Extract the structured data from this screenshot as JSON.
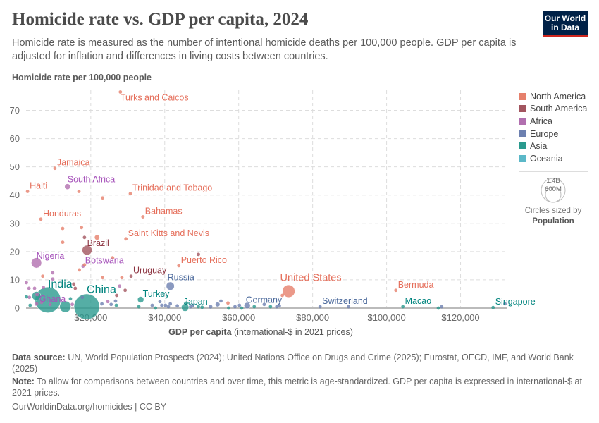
{
  "header": {
    "title": "Homicide rate vs. GDP per capita, 2024",
    "subtitle": "Homicide rate is measured as the number of intentional homicide deaths per 100,000 people. GDP per capita is adjusted for inflation and differences in living costs between countries.",
    "logo": "Our World in Data"
  },
  "legend": {
    "items": [
      {
        "label": "North America",
        "color": "#E6806C"
      },
      {
        "label": "South America",
        "color": "#A2555F"
      },
      {
        "label": "Africa",
        "color": "#B16FAF"
      },
      {
        "label": "Europe",
        "color": "#6D80B0"
      },
      {
        "label": "Asia",
        "color": "#2A9A8E"
      },
      {
        "label": "Oceania",
        "color": "#5BB8C8"
      }
    ],
    "size_big": "1.4B",
    "size_small": "600M",
    "size_caption": "Circles sized by",
    "size_variable": "Population"
  },
  "footer": {
    "source_label": "Data source:",
    "source": "UN, World Population Prospects (2024); United Nations Office on Drugs and Crime (2025); Eurostat, OECD, IMF, and World Bank (2025)",
    "note_label": "Note:",
    "note": "To allow for comparisons between countries and over time, this metric is age-standardized. GDP per capita is expressed in international-$ at 2021 prices.",
    "credit": "OurWorldinData.org/homicides | CC BY"
  },
  "chart_data": {
    "type": "scatter",
    "title": "Homicide rate vs. GDP per capita, 2024",
    "ylabel": "Homicide rate per 100,000 people",
    "xlabel_bold": "GDP per capita",
    "xlabel_rest": "(international-$ in 2021 prices)",
    "xlim": [
      2500,
      134000
    ],
    "ylim": [
      0,
      75
    ],
    "xticks": [
      {
        "v": 20000,
        "label": "$20,000"
      },
      {
        "v": 40000,
        "label": "$40,000"
      },
      {
        "v": 60000,
        "label": "$60,000"
      },
      {
        "v": 80000,
        "label": "$80,000"
      },
      {
        "v": 100000,
        "label": "$100,000"
      },
      {
        "v": 120000,
        "label": "$120,000"
      }
    ],
    "yticks": [
      {
        "v": 0,
        "label": "0"
      },
      {
        "v": 10,
        "label": "10"
      },
      {
        "v": 20,
        "label": "20"
      },
      {
        "v": 30,
        "label": "30"
      },
      {
        "v": 40,
        "label": "40"
      },
      {
        "v": 50,
        "label": "50"
      },
      {
        "v": 60,
        "label": "60"
      },
      {
        "v": 70,
        "label": "70"
      }
    ],
    "grid": true,
    "legend_position": "right",
    "points": [
      {
        "x": 28000,
        "y": 76.5,
        "region": "North America",
        "pop": 0.05,
        "label": "Turks and Caicos"
      },
      {
        "x": 10300,
        "y": 49.5,
        "region": "North America",
        "pop": 2.8,
        "label": "Jamaica"
      },
      {
        "x": 13700,
        "y": 43,
        "region": "Africa",
        "pop": 63,
        "label": "South Africa"
      },
      {
        "x": 2900,
        "y": 41.3,
        "region": "North America",
        "pop": 11.7,
        "label": "Haiti"
      },
      {
        "x": 30700,
        "y": 40.5,
        "region": "North America",
        "pop": 1.5,
        "label": "Trinidad and Tobago"
      },
      {
        "x": 6500,
        "y": 31.5,
        "region": "North America",
        "pop": 10.6,
        "label": "Honduras"
      },
      {
        "x": 34100,
        "y": 32.3,
        "region": "North America",
        "pop": 0.4,
        "label": "Bahamas"
      },
      {
        "x": 29500,
        "y": 24.5,
        "region": "North America",
        "pop": 0.05,
        "label": "Saint Kitts and Nevis"
      },
      {
        "x": 19000,
        "y": 20.5,
        "region": "South America",
        "pop": 212,
        "label": "Brazil"
      },
      {
        "x": 5300,
        "y": 16,
        "region": "Africa",
        "pop": 230,
        "label": "Nigeria"
      },
      {
        "x": 17900,
        "y": 14.8,
        "region": "Africa",
        "pop": 2.5,
        "label": "Botswana"
      },
      {
        "x": 30900,
        "y": 11.3,
        "region": "South America",
        "pop": 3.4,
        "label": "Uruguay"
      },
      {
        "x": 43800,
        "y": 15,
        "region": "North America",
        "pop": 3.2,
        "label": "Puerto Rico"
      },
      {
        "x": 41500,
        "y": 7.8,
        "region": "Europe",
        "pop": 145,
        "label": "Russia"
      },
      {
        "x": 73500,
        "y": 6,
        "region": "North America",
        "pop": 340,
        "label": "United States"
      },
      {
        "x": 102500,
        "y": 6.3,
        "region": "North America",
        "pop": 0.06,
        "label": "Bermuda"
      },
      {
        "x": 8400,
        "y": 2.9,
        "region": "Asia",
        "pop": 1440,
        "label": "India"
      },
      {
        "x": 5300,
        "y": 1.5,
        "region": "Africa",
        "pop": 34,
        "label": "Ghana"
      },
      {
        "x": 18900,
        "y": 0.5,
        "region": "Asia",
        "pop": 1410,
        "label": "China"
      },
      {
        "x": 33500,
        "y": 3,
        "region": "Asia",
        "pop": 86,
        "label": "Turkey"
      },
      {
        "x": 45500,
        "y": 0.2,
        "region": "Asia",
        "pop": 124,
        "label": "Japan"
      },
      {
        "x": 62300,
        "y": 0.9,
        "region": "Europe",
        "pop": 84,
        "label": "Germany"
      },
      {
        "x": 82000,
        "y": 0.5,
        "region": "Europe",
        "pop": 9,
        "label": "Switzerland"
      },
      {
        "x": 104400,
        "y": 0.5,
        "region": "Asia",
        "pop": 0.7,
        "label": "Macao"
      },
      {
        "x": 128800,
        "y": 0.2,
        "region": "Asia",
        "pop": 6,
        "label": "Singapore"
      },
      {
        "x": 16800,
        "y": 41.3,
        "region": "North America",
        "pop": 1
      },
      {
        "x": 23200,
        "y": 39,
        "region": "North America",
        "pop": 1
      },
      {
        "x": 12400,
        "y": 28.2,
        "region": "North America",
        "pop": 1
      },
      {
        "x": 17500,
        "y": 28.5,
        "region": "North America",
        "pop": 1
      },
      {
        "x": 12400,
        "y": 23.3,
        "region": "North America",
        "pop": 1
      },
      {
        "x": 18300,
        "y": 25,
        "region": "South America",
        "pop": 8
      },
      {
        "x": 21700,
        "y": 25,
        "region": "North America",
        "pop": 50
      },
      {
        "x": 25900,
        "y": 17.8,
        "region": "North America",
        "pop": 1
      },
      {
        "x": 49100,
        "y": 19,
        "region": "South America",
        "pop": 1
      },
      {
        "x": 18300,
        "y": 15.3,
        "region": "North America",
        "pop": 1
      },
      {
        "x": 16900,
        "y": 13.5,
        "region": "North America",
        "pop": 1
      },
      {
        "x": 9700,
        "y": 12.5,
        "region": "Africa",
        "pop": 1
      },
      {
        "x": 7000,
        "y": 11.3,
        "region": "North America",
        "pop": 1
      },
      {
        "x": 9700,
        "y": 10.3,
        "region": "Africa",
        "pop": 1
      },
      {
        "x": 23200,
        "y": 10.8,
        "region": "North America",
        "pop": 1
      },
      {
        "x": 28400,
        "y": 10.8,
        "region": "North America",
        "pop": 1
      },
      {
        "x": 2600,
        "y": 9,
        "region": "Africa",
        "pop": 10
      },
      {
        "x": 15400,
        "y": 8.5,
        "region": "South America",
        "pop": 8
      },
      {
        "x": 27800,
        "y": 7.8,
        "region": "Africa",
        "pop": 1
      },
      {
        "x": 29300,
        "y": 6.3,
        "region": "South America",
        "pop": 1
      },
      {
        "x": 27000,
        "y": 4.5,
        "region": "South America",
        "pop": 20
      },
      {
        "x": 15800,
        "y": 7,
        "region": "South America",
        "pop": 1
      },
      {
        "x": 3300,
        "y": 7,
        "region": "Africa",
        "pop": 3
      },
      {
        "x": 4800,
        "y": 7,
        "region": "Africa",
        "pop": 3
      },
      {
        "x": 7200,
        "y": 7.3,
        "region": "Africa",
        "pop": 3
      },
      {
        "x": 5500,
        "y": 4.8,
        "region": "Africa",
        "pop": 30
      },
      {
        "x": 3400,
        "y": 3.8,
        "region": "Africa",
        "pop": 20
      },
      {
        "x": 2600,
        "y": 4,
        "region": "Asia",
        "pop": 5
      },
      {
        "x": 5300,
        "y": 4.3,
        "region": "Asia",
        "pop": 170
      },
      {
        "x": 14500,
        "y": 3.3,
        "region": "Asia",
        "pop": 2
      },
      {
        "x": 17700,
        "y": 3.8,
        "region": "Europe",
        "pop": 10
      },
      {
        "x": 23000,
        "y": 1.5,
        "region": "Europe",
        "pop": 2
      },
      {
        "x": 24600,
        "y": 2.3,
        "region": "Africa",
        "pop": 2
      },
      {
        "x": 25500,
        "y": 1.3,
        "region": "Europe",
        "pop": 2
      },
      {
        "x": 26700,
        "y": 2.5,
        "region": "Europe",
        "pop": 2
      },
      {
        "x": 26900,
        "y": 1,
        "region": "Asia",
        "pop": 2
      },
      {
        "x": 13100,
        "y": 0.5,
        "region": "Asia",
        "pop": 280
      },
      {
        "x": 15000,
        "y": 1.3,
        "region": "Africa",
        "pop": 25
      },
      {
        "x": 9000,
        "y": 1.3,
        "region": "Africa",
        "pop": 5
      },
      {
        "x": 6700,
        "y": 2,
        "region": "Africa",
        "pop": 5
      },
      {
        "x": 3600,
        "y": 1,
        "region": "Asia",
        "pop": 3
      },
      {
        "x": 33000,
        "y": 0.5,
        "region": "Asia",
        "pop": 3
      },
      {
        "x": 36600,
        "y": 1,
        "region": "Europe",
        "pop": 2
      },
      {
        "x": 37500,
        "y": 0,
        "region": "Asia",
        "pop": 2
      },
      {
        "x": 38700,
        "y": 2.3,
        "region": "Europe",
        "pop": 2
      },
      {
        "x": 39200,
        "y": 1,
        "region": "Europe",
        "pop": 2
      },
      {
        "x": 40200,
        "y": 1,
        "region": "Europe",
        "pop": 2
      },
      {
        "x": 41000,
        "y": 0.5,
        "region": "Europe",
        "pop": 2
      },
      {
        "x": 41500,
        "y": 1.5,
        "region": "Europe",
        "pop": 2
      },
      {
        "x": 43400,
        "y": 0.8,
        "region": "Europe",
        "pop": 10
      },
      {
        "x": 45900,
        "y": 1.8,
        "region": "Asia",
        "pop": 2
      },
      {
        "x": 47000,
        "y": 0.5,
        "region": "Europe",
        "pop": 2
      },
      {
        "x": 47600,
        "y": 1,
        "region": "Europe",
        "pop": 2
      },
      {
        "x": 49100,
        "y": 0.5,
        "region": "Asia",
        "pop": 2
      },
      {
        "x": 50100,
        "y": 0.3,
        "region": "Asia",
        "pop": 10
      },
      {
        "x": 52400,
        "y": 0.5,
        "region": "Europe",
        "pop": 30
      },
      {
        "x": 54300,
        "y": 1.3,
        "region": "Europe",
        "pop": 40
      },
      {
        "x": 55200,
        "y": 2.5,
        "region": "Europe",
        "pop": 2
      },
      {
        "x": 57100,
        "y": 1.8,
        "region": "North America",
        "pop": 10
      },
      {
        "x": 57300,
        "y": 0,
        "region": "Asia",
        "pop": 2
      },
      {
        "x": 59000,
        "y": 0.5,
        "region": "Europe",
        "pop": 2
      },
      {
        "x": 60200,
        "y": 1,
        "region": "Europe",
        "pop": 2
      },
      {
        "x": 60800,
        "y": 0,
        "region": "Asia",
        "pop": 2
      },
      {
        "x": 64200,
        "y": 0.5,
        "region": "Asia",
        "pop": 2
      },
      {
        "x": 66900,
        "y": 1.3,
        "region": "Europe",
        "pop": 2
      },
      {
        "x": 68600,
        "y": 0.5,
        "region": "Asia",
        "pop": 2
      },
      {
        "x": 70300,
        "y": 0.5,
        "region": "Europe",
        "pop": 2
      },
      {
        "x": 71000,
        "y": 0.8,
        "region": "Europe",
        "pop": 2
      },
      {
        "x": 71800,
        "y": 4.5,
        "region": "North America",
        "pop": 1
      },
      {
        "x": 89700,
        "y": 0.5,
        "region": "Europe",
        "pop": 2
      },
      {
        "x": 114000,
        "y": 0,
        "region": "Asia",
        "pop": 2
      },
      {
        "x": 114900,
        "y": 0.5,
        "region": "Europe",
        "pop": 2
      },
      {
        "x": 132000,
        "y": 1.5,
        "region": "Europe",
        "pop": 2
      }
    ]
  }
}
